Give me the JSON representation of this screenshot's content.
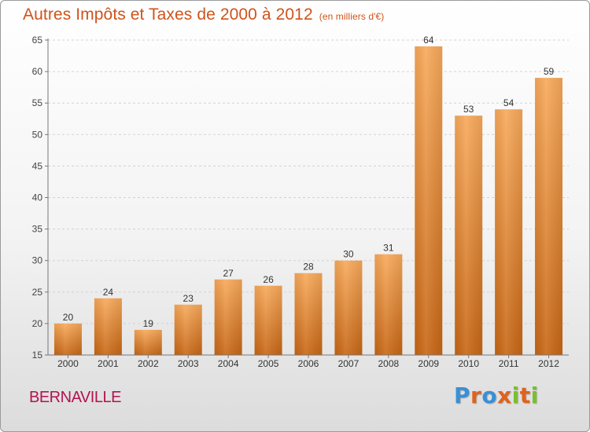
{
  "title": "Autres Impôts et Taxes de 2000 à 2012",
  "subtitle": "(en milliers d'€)",
  "commune": "BERNAVILLE",
  "logo": {
    "letters": [
      "P",
      "r",
      "o",
      "x",
      "i",
      "t",
      "i"
    ],
    "colors": [
      "#3a8fd6",
      "#e0621d",
      "#3a8fd6",
      "#e0621d",
      "#7bbf2a",
      "#e0621d",
      "#7bbf2a"
    ]
  },
  "colors": {
    "bar_light": "#f8a95a",
    "bar_dark": "#c76614",
    "grid": "#d2d2d2",
    "axis": "#777777"
  },
  "chart_data": {
    "type": "bar",
    "title": "Autres Impôts et Taxes de 2000 à 2012",
    "subtitle": "(en milliers d'€)",
    "categories": [
      "2000",
      "2001",
      "2002",
      "2003",
      "2004",
      "2005",
      "2006",
      "2007",
      "2008",
      "2009",
      "2010",
      "2011",
      "2012"
    ],
    "values": [
      20,
      24,
      19,
      23,
      27,
      26,
      28,
      30,
      31,
      64,
      53,
      54,
      59
    ],
    "ylim": [
      15,
      65
    ],
    "yticks": [
      15,
      20,
      25,
      30,
      35,
      40,
      45,
      50,
      55,
      60,
      65
    ],
    "grid": true,
    "xlabel": "",
    "ylabel": ""
  }
}
